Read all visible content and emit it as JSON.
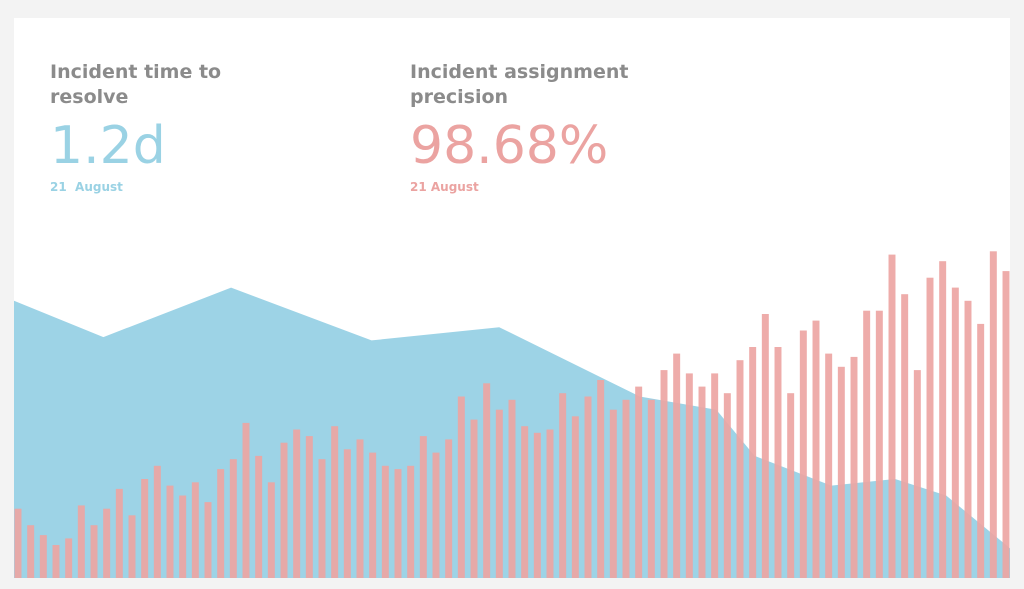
{
  "kpis": [
    {
      "title": "Incident time to resolve",
      "value": "1.2d",
      "date": "21  August",
      "color": "#9ad2e4"
    },
    {
      "title": "Incident assignment precision",
      "value": "98.68%",
      "date": "21 August",
      "color": "#eba3a1"
    }
  ],
  "chart_data": [
    {
      "type": "area",
      "color": "#9dd3e6",
      "x": [
        0,
        7,
        17,
        28,
        38,
        49,
        55,
        58,
        64,
        69,
        73,
        78
      ],
      "values": [
        84,
        73,
        88,
        72,
        76,
        55,
        51,
        37,
        28,
        30,
        25,
        9
      ],
      "xlim": [
        0,
        78
      ],
      "ylim": [
        0,
        100
      ]
    },
    {
      "type": "bar",
      "color": "#eda5a3",
      "values": [
        21,
        16,
        13,
        10,
        12,
        22,
        16,
        21,
        27,
        19,
        30,
        34,
        28,
        25,
        29,
        23,
        33,
        36,
        47,
        37,
        29,
        41,
        45,
        43,
        36,
        46,
        39,
        42,
        38,
        34,
        33,
        34,
        43,
        38,
        42,
        55,
        48,
        59,
        51,
        54,
        46,
        44,
        45,
        56,
        49,
        55,
        60,
        51,
        54,
        58,
        54,
        63,
        68,
        62,
        58,
        62,
        56,
        66,
        70,
        80,
        70,
        56,
        75,
        78,
        68,
        64,
        67,
        81,
        81,
        98,
        86,
        63,
        91,
        96,
        88,
        84,
        77,
        99,
        93
      ],
      "ylim": [
        0,
        100
      ]
    }
  ]
}
